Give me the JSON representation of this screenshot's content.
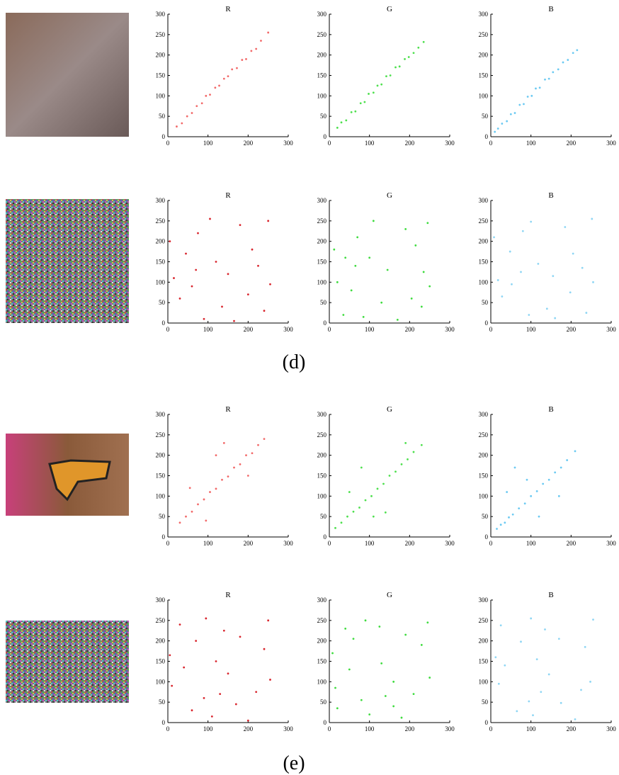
{
  "chart_data": [
    {
      "type": "scatter",
      "title": "R",
      "color": "#f26a6a",
      "xlim": [
        0,
        300
      ],
      "ylim": [
        0,
        300
      ],
      "xticks": [
        0,
        100,
        200,
        300
      ],
      "yticks": [
        0,
        50,
        100,
        150,
        200,
        250,
        300
      ],
      "x": [
        22,
        35,
        48,
        60,
        72,
        85,
        95,
        105,
        118,
        128,
        140,
        150,
        160,
        172,
        185,
        195,
        208,
        220,
        232,
        250
      ],
      "y": [
        25,
        33,
        50,
        58,
        75,
        82,
        100,
        103,
        120,
        125,
        142,
        148,
        165,
        168,
        188,
        190,
        210,
        215,
        235,
        255
      ]
    },
    {
      "type": "scatter",
      "title": "G",
      "color": "#4ee04e",
      "xlim": [
        0,
        300
      ],
      "ylim": [
        0,
        300
      ],
      "xticks": [
        0,
        100,
        200,
        300
      ],
      "yticks": [
        0,
        50,
        100,
        150,
        200,
        250,
        300
      ],
      "x": [
        20,
        30,
        42,
        55,
        65,
        78,
        88,
        98,
        110,
        120,
        130,
        142,
        152,
        165,
        175,
        188,
        198,
        210,
        222,
        235
      ],
      "y": [
        22,
        35,
        40,
        60,
        62,
        82,
        85,
        105,
        108,
        125,
        128,
        148,
        150,
        170,
        172,
        190,
        195,
        205,
        218,
        232
      ]
    },
    {
      "type": "scatter",
      "title": "B",
      "color": "#6ccaf2",
      "xlim": [
        0,
        300
      ],
      "ylim": [
        0,
        300
      ],
      "xticks": [
        0,
        100,
        200,
        300
      ],
      "yticks": [
        0,
        50,
        100,
        150,
        200,
        250,
        300
      ],
      "x": [
        10,
        18,
        28,
        40,
        50,
        60,
        72,
        82,
        92,
        102,
        112,
        122,
        135,
        145,
        155,
        168,
        180,
        192,
        205,
        215
      ],
      "y": [
        12,
        20,
        32,
        38,
        55,
        58,
        78,
        80,
        98,
        100,
        118,
        120,
        140,
        142,
        158,
        165,
        182,
        188,
        205,
        212
      ]
    },
    {
      "type": "scatter",
      "title": "R",
      "color": "#d9262e",
      "xlim": [
        0,
        300
      ],
      "ylim": [
        0,
        300
      ],
      "xticks": [
        0,
        100,
        200,
        300
      ],
      "yticks": [
        0,
        50,
        100,
        150,
        200,
        250,
        300
      ],
      "x": [
        5,
        240,
        120,
        60,
        180,
        30,
        210,
        90,
        150,
        250,
        15,
        75,
        200,
        135,
        45,
        225,
        105,
        165,
        255,
        70
      ],
      "y": [
        200,
        30,
        150,
        90,
        240,
        60,
        180,
        10,
        120,
        250,
        110,
        220,
        70,
        40,
        170,
        140,
        255,
        5,
        95,
        130
      ]
    },
    {
      "type": "scatter",
      "title": "G",
      "color": "#3fdc3f",
      "xlim": [
        0,
        300
      ],
      "ylim": [
        0,
        300
      ],
      "xticks": [
        0,
        100,
        200,
        300
      ],
      "yticks": [
        0,
        50,
        100,
        150,
        200,
        250,
        300
      ],
      "x": [
        12,
        230,
        100,
        55,
        190,
        35,
        215,
        85,
        145,
        245,
        20,
        70,
        205,
        130,
        40,
        235,
        110,
        170,
        250,
        65
      ],
      "y": [
        180,
        40,
        160,
        80,
        230,
        20,
        190,
        15,
        130,
        245,
        100,
        210,
        60,
        50,
        160,
        125,
        250,
        8,
        90,
        140
      ]
    },
    {
      "type": "scatter",
      "title": "B",
      "color": "#8fd6f4",
      "xlim": [
        0,
        300
      ],
      "ylim": [
        0,
        300
      ],
      "xticks": [
        0,
        100,
        200,
        300
      ],
      "yticks": [
        0,
        50,
        100,
        150,
        200,
        250,
        300
      ],
      "x": [
        8,
        238,
        118,
        52,
        185,
        28,
        205,
        95,
        155,
        252,
        18,
        80,
        198,
        140,
        48,
        228,
        100,
        160,
        255,
        75
      ],
      "y": [
        210,
        25,
        145,
        95,
        235,
        65,
        170,
        20,
        115,
        255,
        105,
        225,
        75,
        35,
        175,
        135,
        248,
        12,
        100,
        125
      ]
    },
    {
      "type": "scatter",
      "title": "R",
      "color": "#f26a6a",
      "xlim": [
        0,
        300
      ],
      "ylim": [
        0,
        300
      ],
      "xticks": [
        0,
        100,
        200,
        300
      ],
      "yticks": [
        0,
        50,
        100,
        150,
        200,
        250,
        300
      ],
      "x": [
        30,
        45,
        60,
        75,
        90,
        105,
        120,
        135,
        150,
        165,
        180,
        195,
        210,
        225,
        240,
        55,
        95,
        140,
        200,
        120
      ],
      "y": [
        35,
        50,
        62,
        80,
        92,
        110,
        118,
        140,
        148,
        170,
        178,
        200,
        205,
        225,
        240,
        120,
        40,
        230,
        150,
        200
      ]
    },
    {
      "type": "scatter",
      "title": "G",
      "color": "#4ee04e",
      "xlim": [
        0,
        300
      ],
      "ylim": [
        0,
        300
      ],
      "xticks": [
        0,
        100,
        200,
        300
      ],
      "yticks": [
        0,
        50,
        100,
        150,
        200,
        250,
        300
      ],
      "x": [
        15,
        30,
        45,
        60,
        75,
        90,
        105,
        120,
        135,
        150,
        165,
        180,
        195,
        210,
        230,
        50,
        80,
        140,
        190,
        110
      ],
      "y": [
        22,
        35,
        50,
        62,
        72,
        90,
        100,
        118,
        130,
        150,
        160,
        178,
        190,
        208,
        225,
        110,
        170,
        60,
        230,
        50
      ]
    },
    {
      "type": "scatter",
      "title": "B",
      "color": "#6ccaf2",
      "xlim": [
        0,
        300
      ],
      "ylim": [
        0,
        300
      ],
      "xticks": [
        0,
        100,
        200,
        300
      ],
      "yticks": [
        0,
        50,
        100,
        150,
        200,
        250,
        300
      ],
      "x": [
        15,
        25,
        35,
        45,
        55,
        70,
        85,
        100,
        115,
        130,
        145,
        160,
        175,
        190,
        210,
        40,
        60,
        120,
        170,
        90
      ],
      "y": [
        20,
        30,
        35,
        48,
        55,
        70,
        82,
        100,
        112,
        130,
        140,
        158,
        170,
        188,
        210,
        110,
        170,
        50,
        100,
        140
      ]
    },
    {
      "type": "scatter",
      "title": "R",
      "color": "#d9262e",
      "xlim": [
        0,
        300
      ],
      "ylim": [
        0,
        300
      ],
      "xticks": [
        0,
        100,
        200,
        300
      ],
      "yticks": [
        0,
        50,
        100,
        150,
        200,
        250,
        300
      ],
      "x": [
        200,
        30,
        150,
        90,
        240,
        60,
        180,
        10,
        120,
        250,
        110,
        220,
        70,
        40,
        170,
        140,
        255,
        5,
        95,
        130
      ],
      "y": [
        5,
        240,
        120,
        60,
        180,
        30,
        210,
        90,
        150,
        250,
        15,
        75,
        200,
        135,
        45,
        225,
        105,
        165,
        255,
        70
      ]
    },
    {
      "type": "scatter",
      "title": "G",
      "color": "#3fdc3f",
      "xlim": [
        0,
        300
      ],
      "ylim": [
        0,
        300
      ],
      "xticks": [
        0,
        100,
        200,
        300
      ],
      "yticks": [
        0,
        50,
        100,
        150,
        200,
        250,
        300
      ],
      "x": [
        180,
        40,
        160,
        80,
        230,
        20,
        190,
        15,
        130,
        245,
        100,
        210,
        60,
        50,
        160,
        125,
        250,
        8,
        90,
        140
      ],
      "y": [
        12,
        230,
        100,
        55,
        190,
        35,
        215,
        85,
        145,
        245,
        20,
        70,
        205,
        130,
        40,
        235,
        110,
        170,
        250,
        65
      ]
    },
    {
      "type": "scatter",
      "title": "B",
      "color": "#8fd6f4",
      "xlim": [
        0,
        300
      ],
      "ylim": [
        0,
        300
      ],
      "xticks": [
        0,
        100,
        200,
        300
      ],
      "yticks": [
        0,
        50,
        100,
        150,
        200,
        250,
        300
      ],
      "x": [
        210,
        25,
        145,
        95,
        235,
        65,
        170,
        20,
        115,
        255,
        105,
        225,
        75,
        35,
        175,
        135,
        248,
        12,
        100,
        125
      ],
      "y": [
        8,
        238,
        118,
        52,
        185,
        28,
        205,
        95,
        155,
        252,
        18,
        80,
        198,
        140,
        48,
        228,
        100,
        160,
        255,
        75
      ]
    }
  ],
  "captions": [
    "(d)",
    "(e)"
  ]
}
